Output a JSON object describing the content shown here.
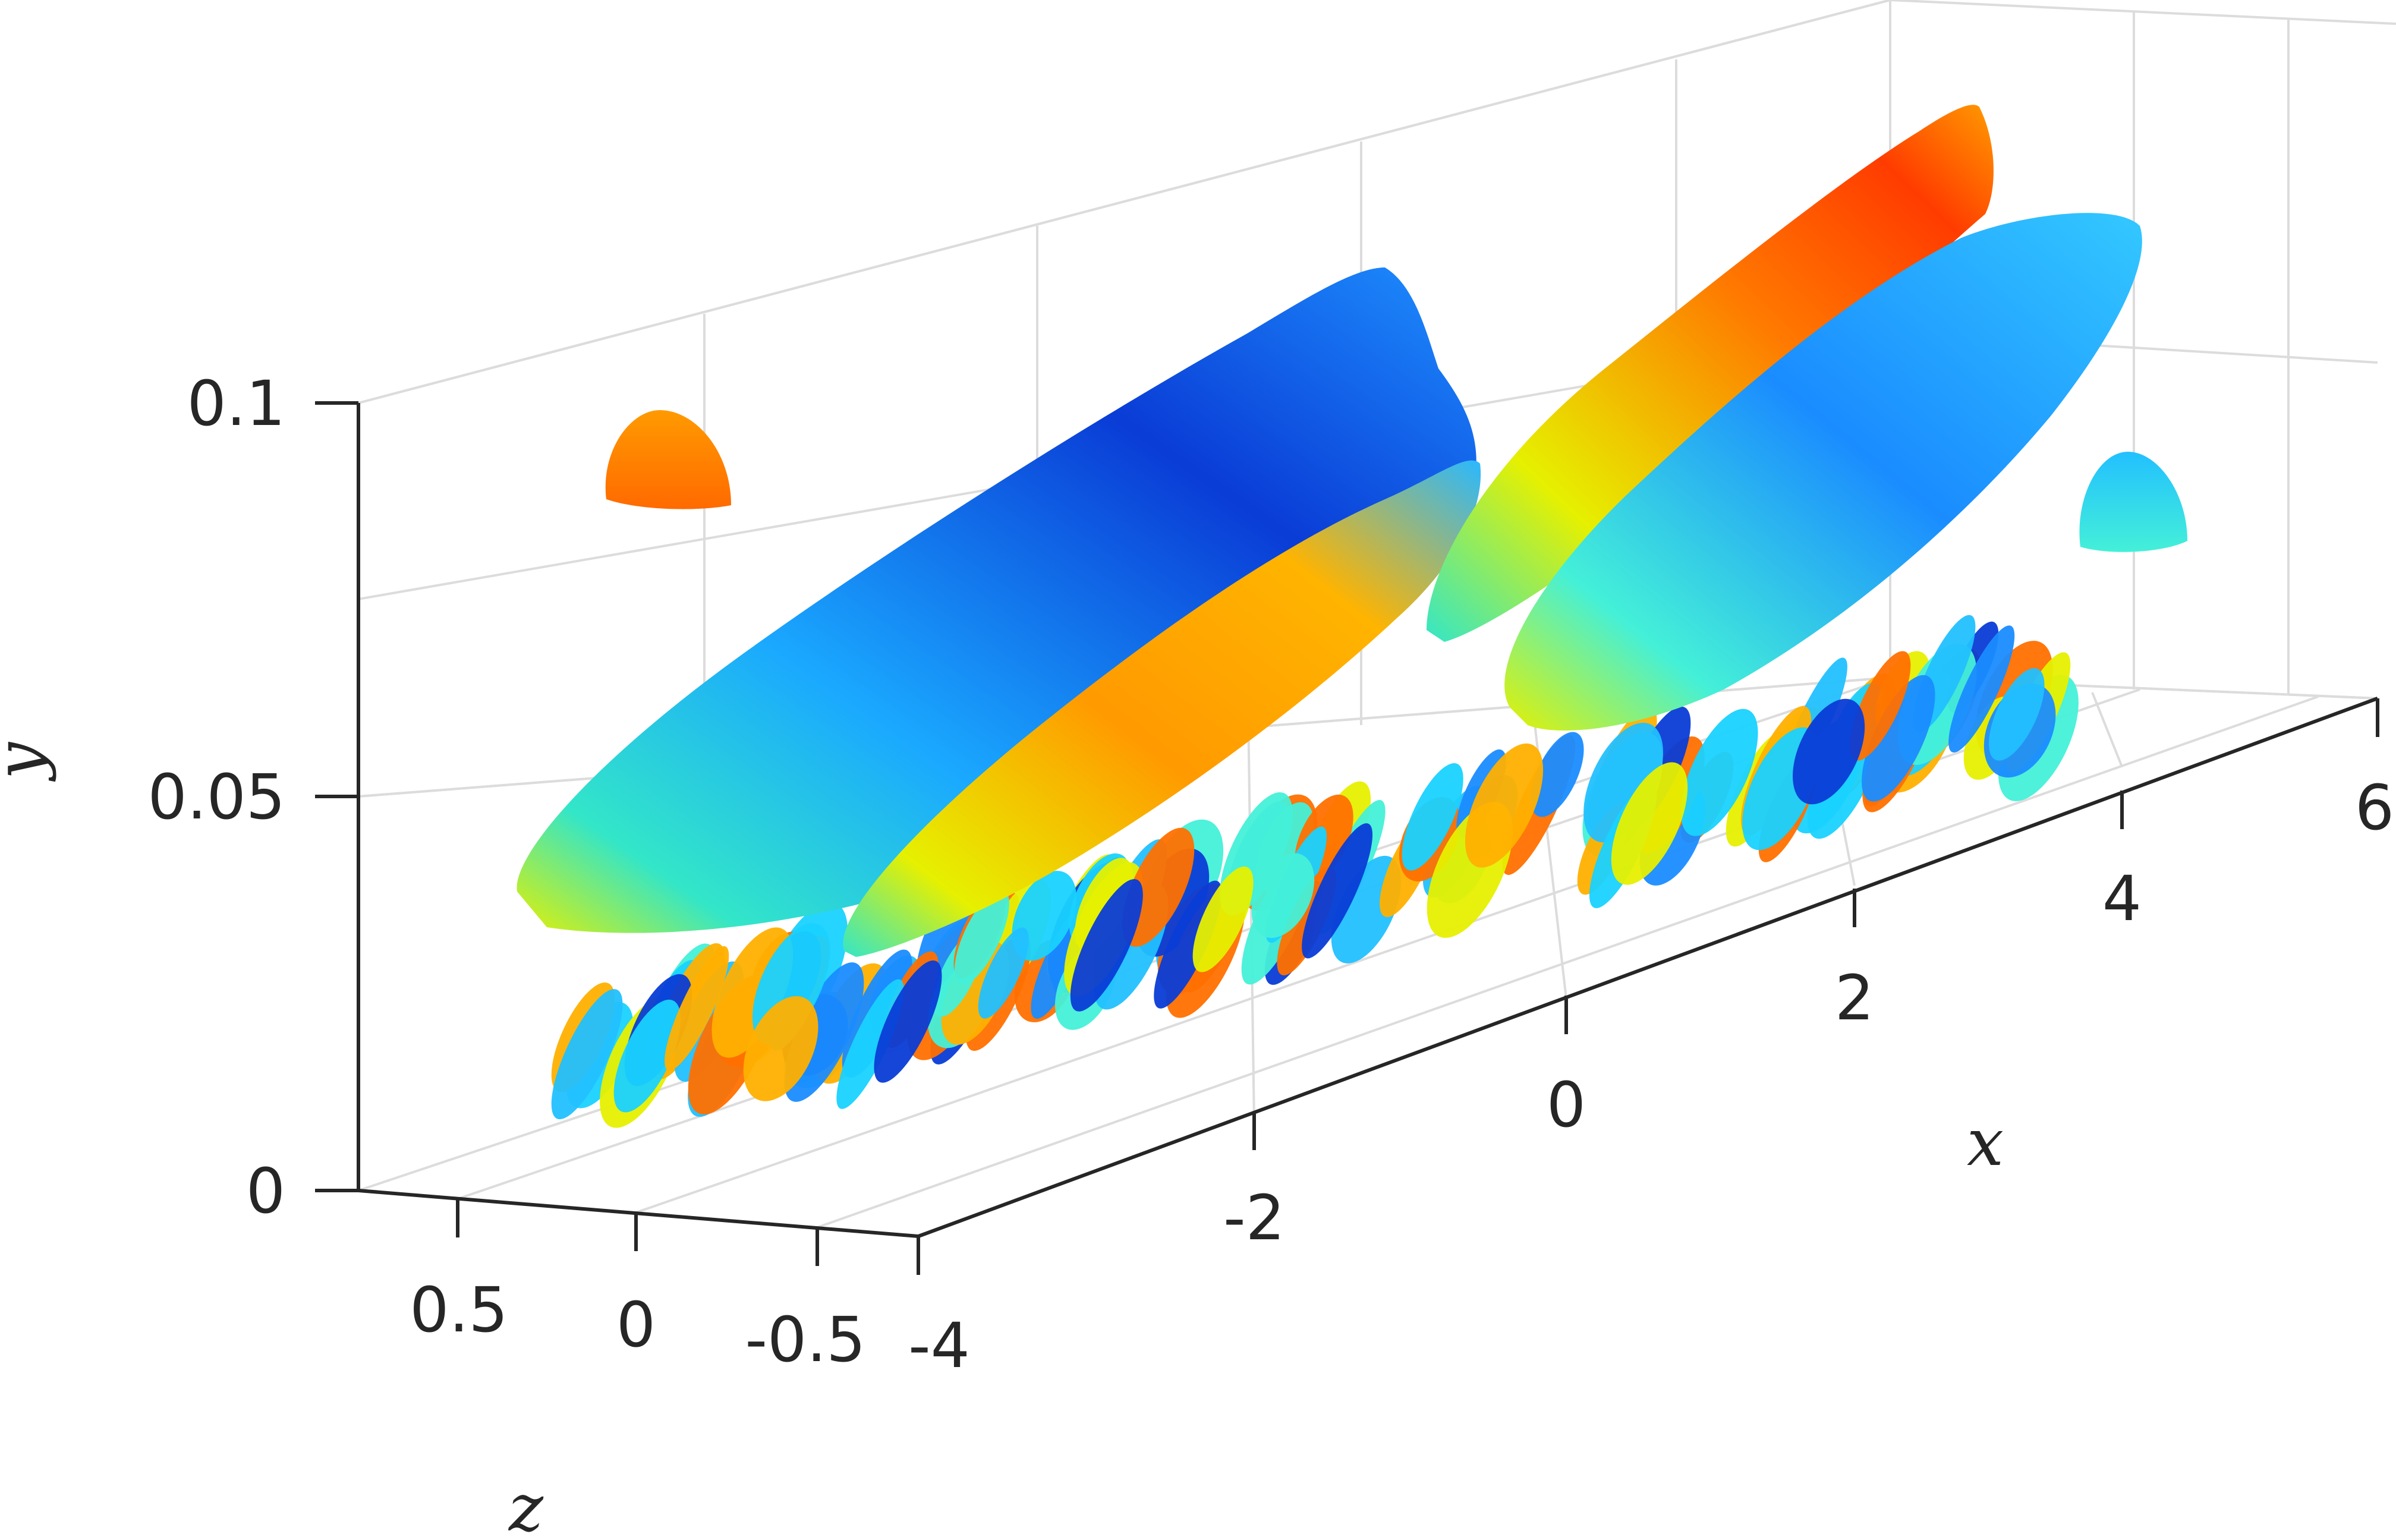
{
  "chart_data": {
    "type": "isosurface-3d",
    "colormap": "jet",
    "axes": {
      "x": {
        "label": "x",
        "ticks": [
          "-4",
          "-2",
          "0",
          "2",
          "4",
          "6"
        ],
        "range": [
          -4,
          6
        ]
      },
      "y": {
        "label": "y",
        "ticks": [
          "0",
          "0.05",
          "0.1"
        ],
        "range": [
          0,
          0.1
        ]
      },
      "z": {
        "label": "z",
        "ticks": [
          "0.5",
          "0",
          "-0.5"
        ],
        "range": [
          0.75,
          -0.75
        ]
      }
    },
    "grid": true,
    "structures": [
      {
        "kind": "large-streak",
        "colors": [
          "#0a3cd6",
          "#1e90ff",
          "#19d2ff",
          "#e6f000"
        ]
      },
      {
        "kind": "large-streak",
        "colors": [
          "#ff7a00",
          "#ffb000",
          "#e6f000",
          "#33e6d0"
        ]
      },
      {
        "kind": "large-streak",
        "colors": [
          "#ff3c00",
          "#ff9a00",
          "#e6f000",
          "#22c8ff"
        ]
      },
      {
        "kind": "large-streak",
        "colors": [
          "#1a8cff",
          "#33c8ff",
          "#44f0d8",
          "#e6f000"
        ]
      },
      {
        "kind": "small-blob",
        "colors": [
          "#ff8a00",
          "#ff7000"
        ]
      },
      {
        "kind": "small-blob",
        "colors": [
          "#28e0e0",
          "#22c0ff"
        ]
      }
    ]
  }
}
